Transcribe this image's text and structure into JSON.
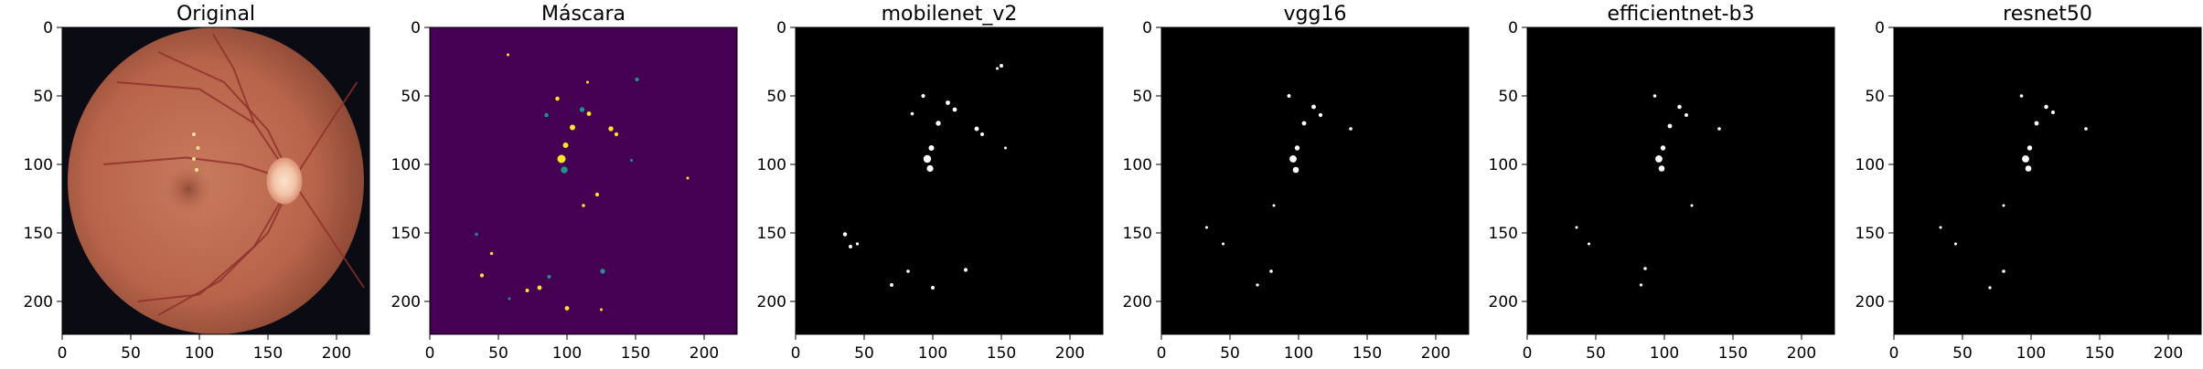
{
  "panels": [
    {
      "id": "original",
      "title": "Original",
      "kind": "fundus"
    },
    {
      "id": "mask",
      "title": "Máscara",
      "kind": "viridis-mask"
    },
    {
      "id": "mobilenet",
      "title": "mobilenet_v2",
      "kind": "binary"
    },
    {
      "id": "vgg",
      "title": "vgg16",
      "kind": "binary"
    },
    {
      "id": "efficientnet",
      "title": "efficientnet-b3",
      "kind": "binary"
    },
    {
      "id": "resnet",
      "title": "resnet50",
      "kind": "binary"
    }
  ],
  "axes": {
    "x_ticks": [
      "0",
      "50",
      "100",
      "150",
      "200"
    ],
    "y_ticks": [
      "0",
      "50",
      "100",
      "150",
      "200"
    ],
    "range": [
      0,
      224
    ]
  },
  "colors": {
    "mask_background": "#440154",
    "mask_low": "#21918c",
    "mask_high": "#fde725",
    "binary_background": "#000000",
    "binary_foreground": "#ffffff",
    "fundus_background": "#0b0b14",
    "fundus_retina": "#b8644a",
    "vessel": "#8e2e2a",
    "optic_disc": "#f2c4a8"
  },
  "lesions": {
    "mask": [
      [
        96,
        96,
        3
      ],
      [
        98,
        104,
        2.5
      ],
      [
        99,
        86,
        2
      ],
      [
        104,
        73,
        2
      ],
      [
        111,
        60,
        1.8
      ],
      [
        116,
        63,
        1.6
      ],
      [
        93,
        52,
        1.5
      ],
      [
        85,
        64,
        1.5
      ],
      [
        132,
        74,
        1.8
      ],
      [
        136,
        78,
        1.4
      ],
      [
        151,
        38,
        1.4
      ],
      [
        122,
        122,
        1.4
      ],
      [
        112,
        130,
        1.2
      ],
      [
        126,
        178,
        1.8
      ],
      [
        100,
        205,
        1.6
      ],
      [
        80,
        190,
        1.6
      ],
      [
        87,
        182,
        1.3
      ],
      [
        71,
        192,
        1.3
      ],
      [
        38,
        181,
        1.4
      ],
      [
        34,
        151,
        1.1
      ],
      [
        45,
        165,
        1.1
      ],
      [
        188,
        110,
        1
      ],
      [
        147,
        97,
        1
      ],
      [
        57,
        20,
        1
      ],
      [
        115,
        40,
        1
      ],
      [
        58,
        198,
        1
      ],
      [
        125,
        206,
        1
      ]
    ],
    "mobilenet": [
      [
        96,
        96,
        2.8
      ],
      [
        98,
        103,
        2.4
      ],
      [
        99,
        88,
        2
      ],
      [
        104,
        70,
        1.8
      ],
      [
        111,
        55,
        1.6
      ],
      [
        116,
        60,
        1.6
      ],
      [
        93,
        50,
        1.4
      ],
      [
        85,
        63,
        1.2
      ],
      [
        132,
        74,
        1.6
      ],
      [
        136,
        78,
        1.3
      ],
      [
        150,
        28,
        1.3
      ],
      [
        124,
        177,
        1.4
      ],
      [
        100,
        190,
        1.3
      ],
      [
        70,
        188,
        1.3
      ],
      [
        82,
        178,
        1.2
      ],
      [
        36,
        151,
        1.5
      ],
      [
        40,
        160,
        1.3
      ],
      [
        45,
        158,
        1.1
      ],
      [
        153,
        88,
        1
      ],
      [
        147,
        30,
        1
      ]
    ],
    "vgg": [
      [
        96,
        96,
        2.6
      ],
      [
        98,
        104,
        2.2
      ],
      [
        99,
        88,
        1.8
      ],
      [
        104,
        70,
        1.6
      ],
      [
        111,
        58,
        1.6
      ],
      [
        116,
        64,
        1.4
      ],
      [
        93,
        50,
        1.3
      ],
      [
        138,
        74,
        1.2
      ],
      [
        82,
        130,
        1
      ],
      [
        80,
        178,
        1.2
      ],
      [
        70,
        188,
        1.1
      ],
      [
        33,
        146,
        1
      ],
      [
        45,
        158,
        1
      ]
    ],
    "efficientnet": [
      [
        96,
        96,
        2.6
      ],
      [
        98,
        103,
        2.2
      ],
      [
        99,
        88,
        1.8
      ],
      [
        104,
        72,
        1.6
      ],
      [
        111,
        58,
        1.5
      ],
      [
        116,
        64,
        1.3
      ],
      [
        93,
        50,
        1.2
      ],
      [
        140,
        74,
        1.2
      ],
      [
        120,
        130,
        1
      ],
      [
        86,
        176,
        1.2
      ],
      [
        83,
        188,
        1.1
      ],
      [
        36,
        146,
        1
      ],
      [
        45,
        158,
        1
      ]
    ],
    "resnet": [
      [
        96,
        96,
        2.6
      ],
      [
        98,
        103,
        2.2
      ],
      [
        99,
        88,
        1.8
      ],
      [
        104,
        70,
        1.6
      ],
      [
        111,
        58,
        1.5
      ],
      [
        116,
        62,
        1.3
      ],
      [
        93,
        50,
        1.2
      ],
      [
        140,
        74,
        1.2
      ],
      [
        80,
        130,
        1
      ],
      [
        80,
        178,
        1.2
      ],
      [
        70,
        190,
        1.1
      ],
      [
        34,
        146,
        1
      ],
      [
        45,
        158,
        1
      ]
    ]
  }
}
